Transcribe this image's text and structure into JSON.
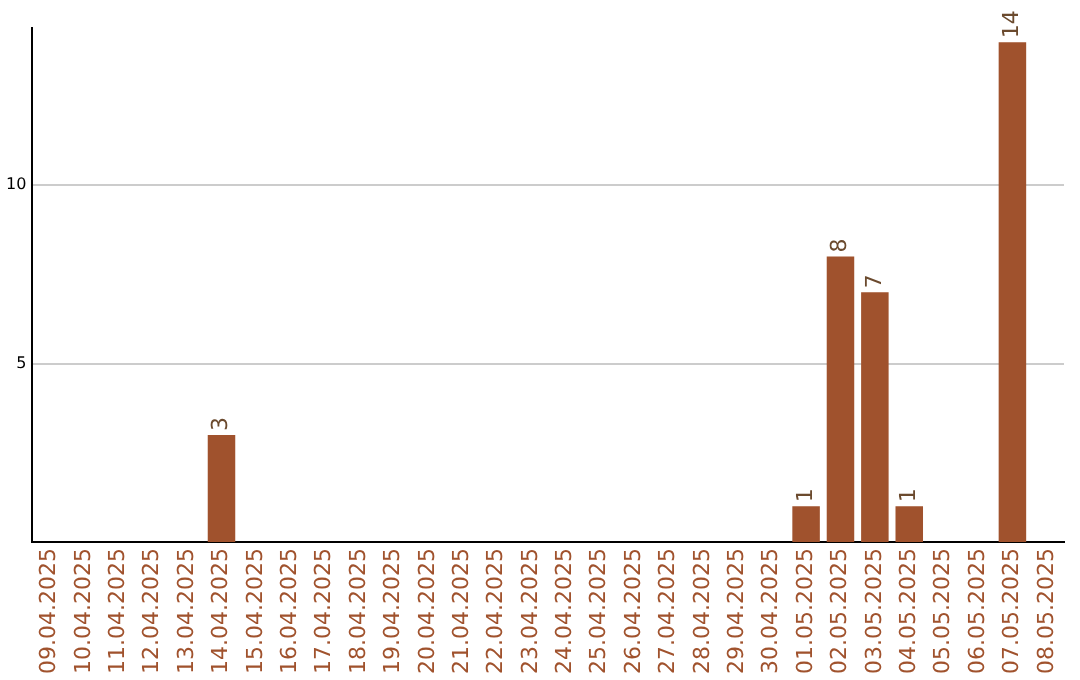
{
  "chart_data": {
    "type": "bar",
    "categories": [
      "09.04.2025",
      "10.04.2025",
      "11.04.2025",
      "12.04.2025",
      "13.04.2025",
      "14.04.2025",
      "15.04.2025",
      "16.04.2025",
      "17.04.2025",
      "18.04.2025",
      "19.04.2025",
      "20.04.2025",
      "21.04.2025",
      "22.04.2025",
      "23.04.2025",
      "24.04.2025",
      "25.04.2025",
      "26.04.2025",
      "27.04.2025",
      "28.04.2025",
      "29.04.2025",
      "30.04.2025",
      "01.05.2025",
      "02.05.2025",
      "03.05.2025",
      "04.05.2025",
      "05.05.2025",
      "06.05.2025",
      "07.05.2025",
      "08.05.2025"
    ],
    "values": [
      0,
      0,
      0,
      0,
      0,
      3,
      0,
      0,
      0,
      0,
      0,
      0,
      0,
      0,
      0,
      0,
      0,
      0,
      0,
      0,
      0,
      0,
      1,
      8,
      7,
      1,
      0,
      0,
      14,
      0
    ],
    "value_labels": [
      null,
      null,
      null,
      null,
      null,
      "3",
      null,
      null,
      null,
      null,
      null,
      null,
      null,
      null,
      null,
      null,
      null,
      null,
      null,
      null,
      null,
      null,
      "1",
      "8",
      "7",
      "1",
      null,
      null,
      "14",
      null
    ],
    "color": "#a0522d",
    "ylim": [
      0,
      14.4
    ],
    "yticks": [
      5,
      10
    ],
    "grid": "y",
    "legend": false
  }
}
